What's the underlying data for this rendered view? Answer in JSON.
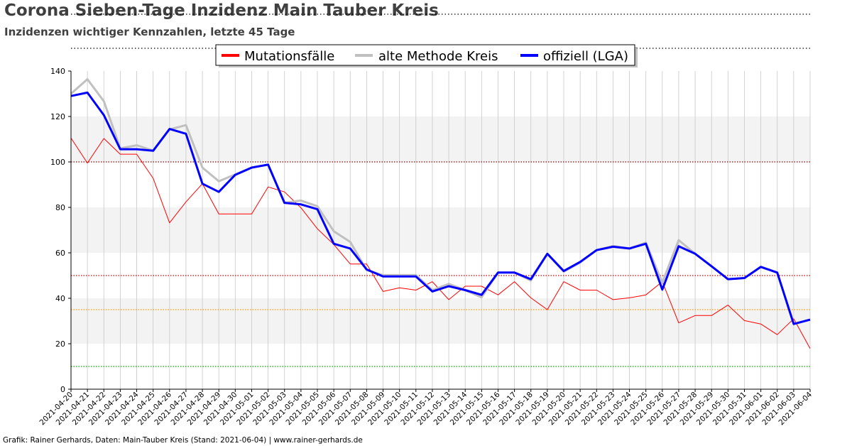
{
  "title": "Corona Sieben-Tage Inzidenz Main Tauber Kreis",
  "subtitle": "Inzidenzen wichtiger Kennzahlen, letzte 45 Tage",
  "footer": "Grafik: Rainer Gerhards, Daten: Main-Tauber Kreis (Stand: 2021-06-04) | www.rainer-gerhards.de",
  "chart_data": {
    "type": "line",
    "xlabel": "",
    "ylabel": "",
    "ylim": [
      0,
      140
    ],
    "yticks": [
      0,
      20,
      40,
      60,
      80,
      100,
      120,
      140
    ],
    "grid": true,
    "legend": "top-center",
    "shaded_bands": [
      [
        20,
        40
      ],
      [
        60,
        80
      ],
      [
        100,
        120
      ]
    ],
    "thresholds": [
      {
        "value": 100,
        "color": "#8b0000"
      },
      {
        "value": 50,
        "color": "#cc0000"
      },
      {
        "value": 35,
        "color": "#ff9900"
      },
      {
        "value": 10,
        "color": "#00aa00"
      }
    ],
    "x": [
      "2021-04-20",
      "2021-04-21",
      "2021-04-22",
      "2021-04-23",
      "2021-04-24",
      "2021-04-25",
      "2021-04-26",
      "2021-04-27",
      "2021-04-28",
      "2021-04-29",
      "2021-04-30",
      "2021-05-01",
      "2021-05-02",
      "2021-05-03",
      "2021-05-04",
      "2021-05-05",
      "2021-05-06",
      "2021-05-07",
      "2021-05-08",
      "2021-05-09",
      "2021-05-10",
      "2021-05-11",
      "2021-05-12",
      "2021-05-13",
      "2021-05-14",
      "2021-05-15",
      "2021-05-16",
      "2021-05-17",
      "2021-05-18",
      "2021-05-19",
      "2021-05-20",
      "2021-05-21",
      "2021-05-22",
      "2021-05-23",
      "2021-05-24",
      "2021-05-25",
      "2021-05-26",
      "2021-05-27",
      "2021-05-28",
      "2021-05-29",
      "2021-05-30",
      "2021-05-31",
      "2021-06-01",
      "2021-06-02",
      "2021-06-03",
      "2021-06-04"
    ],
    "series": [
      {
        "name": "Mutationsfälle",
        "color": "#ff0000",
        "width": 1,
        "values": [
          110.5,
          99.5,
          110.3,
          103.4,
          103.4,
          92.8,
          73.2,
          82.4,
          90.4,
          77.1,
          77.1,
          77.1,
          89.0,
          86.8,
          79.8,
          70.6,
          63.7,
          55.1,
          55.1,
          43.0,
          44.6,
          43.6,
          47.3,
          39.4,
          45.3,
          45.3,
          41.5,
          47.3,
          40.2,
          35.0,
          47.3,
          43.6,
          43.6,
          39.4,
          40.2,
          41.5,
          47.3,
          29.2,
          32.4,
          32.4,
          37.0,
          30.2,
          28.7,
          24.0,
          31.0,
          17.9
        ]
      },
      {
        "name": "alte Methode Kreis",
        "color": "#c0c0c0",
        "width": 3,
        "values": [
          130.0,
          136.4,
          126.7,
          106.0,
          107.3,
          105.0,
          114.3,
          116.2,
          97.5,
          91.5,
          94.5,
          97.5,
          98.8,
          82.0,
          83.0,
          80.5,
          69.5,
          64.8,
          52.4,
          50.2,
          50.2,
          50.2,
          43.6,
          46.3,
          43.6,
          40.4,
          51.3,
          51.3,
          47.8,
          59.6,
          51.7,
          55.7,
          61.2,
          63.0,
          61.9,
          64.5,
          46.8,
          65.6,
          59.6,
          54.1,
          48.4,
          48.9,
          53.8,
          51.3,
          28.7,
          30.6
        ]
      },
      {
        "name": "offiziell (LGA)",
        "color": "#0000ff",
        "width": 3,
        "values": [
          129.0,
          130.5,
          120.6,
          105.6,
          105.6,
          104.9,
          114.5,
          112.4,
          90.4,
          86.8,
          94.3,
          97.5,
          98.8,
          82.0,
          81.3,
          79.2,
          64.0,
          61.9,
          52.7,
          49.6,
          49.6,
          49.6,
          43.0,
          45.3,
          43.6,
          41.5,
          51.3,
          51.3,
          48.4,
          59.6,
          52.0,
          56.0,
          61.2,
          62.7,
          61.9,
          64.0,
          43.8,
          62.9,
          59.6,
          54.1,
          48.4,
          48.9,
          53.8,
          51.3,
          28.7,
          30.6
        ]
      }
    ]
  }
}
